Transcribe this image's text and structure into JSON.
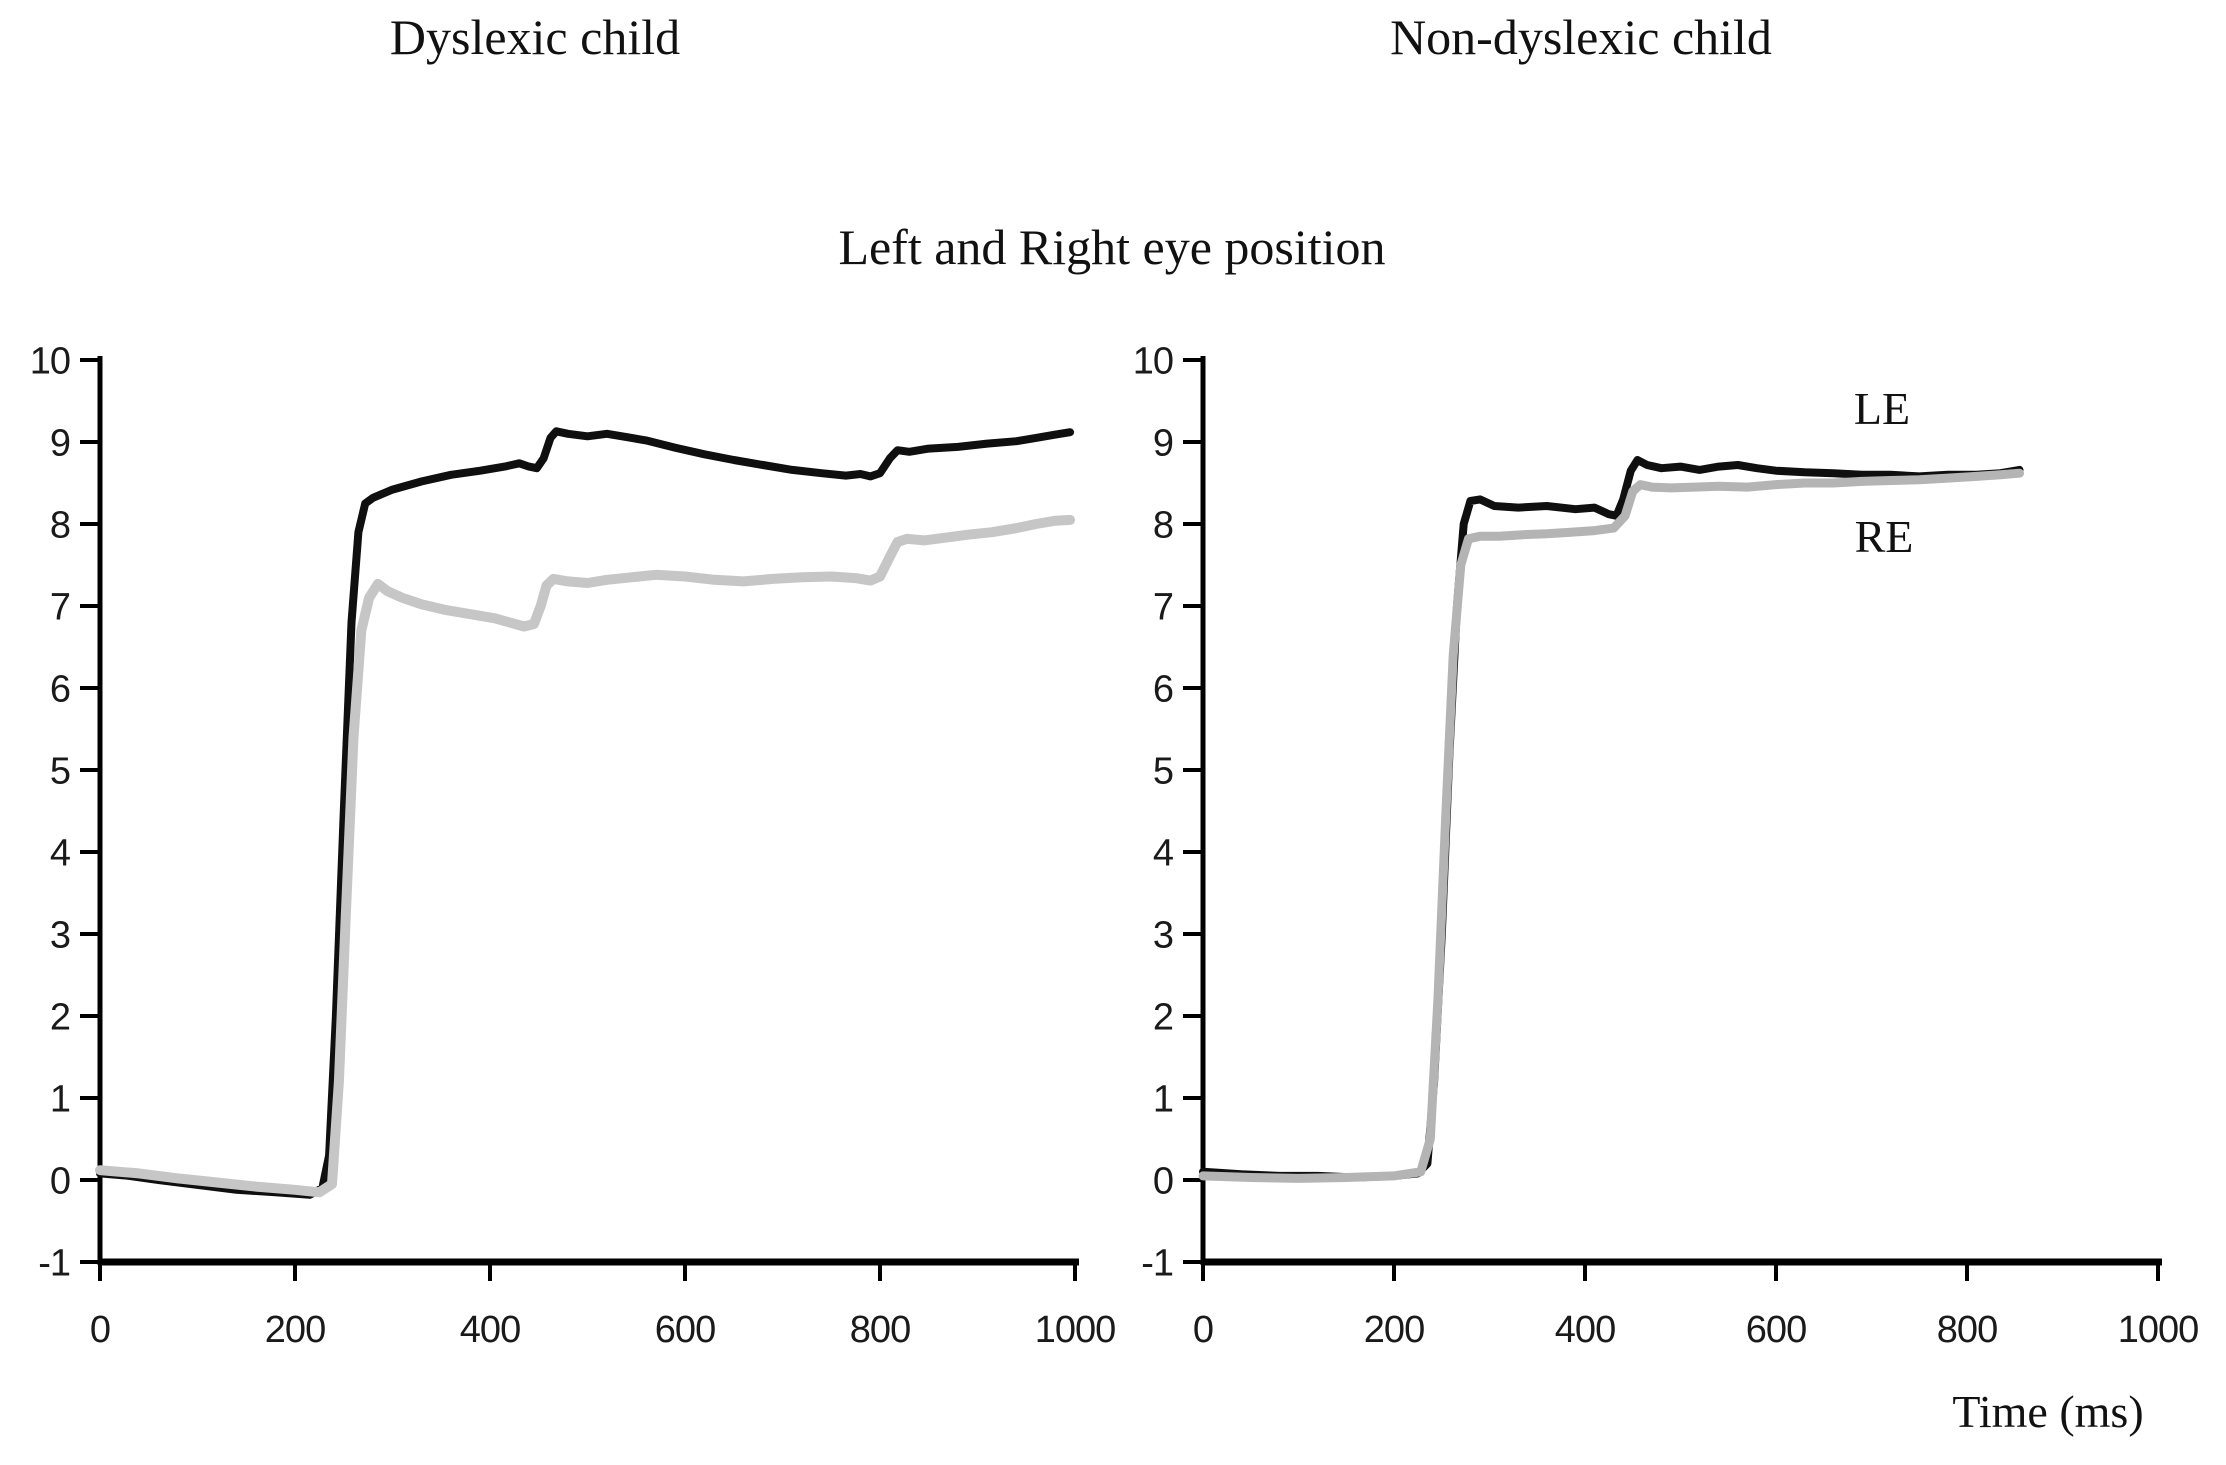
{
  "figure": {
    "subtitle": "Left and Right eye position",
    "background": "#ffffff",
    "axis_color": "#000000",
    "text_color": "#111111"
  },
  "chart_data": [
    {
      "type": "line",
      "title": "Dyslexic child",
      "xlabel": "",
      "ylabel": "",
      "xlim": [
        0,
        1000
      ],
      "ylim": [
        -1,
        10
      ],
      "x_ticks": [
        0,
        200,
        400,
        600,
        800,
        1000
      ],
      "y_ticks": [
        10,
        9,
        8,
        7,
        6,
        5,
        4,
        3,
        2,
        1,
        0,
        -1
      ],
      "grid": false,
      "legend_position": "none",
      "series": [
        {
          "name": "LE",
          "color": "#0f0f0f",
          "width": 8,
          "points": [
            [
              0,
              0.08
            ],
            [
              30,
              0.05
            ],
            [
              60,
              0.0
            ],
            [
              100,
              -0.06
            ],
            [
              140,
              -0.12
            ],
            [
              180,
              -0.15
            ],
            [
              215,
              -0.18
            ],
            [
              228,
              -0.1
            ],
            [
              235,
              0.3
            ],
            [
              242,
              2.0
            ],
            [
              250,
              4.5
            ],
            [
              258,
              6.8
            ],
            [
              265,
              7.9
            ],
            [
              272,
              8.25
            ],
            [
              280,
              8.32
            ],
            [
              300,
              8.42
            ],
            [
              330,
              8.52
            ],
            [
              360,
              8.6
            ],
            [
              390,
              8.65
            ],
            [
              415,
              8.7
            ],
            [
              430,
              8.74
            ],
            [
              440,
              8.7
            ],
            [
              448,
              8.68
            ],
            [
              455,
              8.8
            ],
            [
              462,
              9.05
            ],
            [
              468,
              9.13
            ],
            [
              480,
              9.1
            ],
            [
              500,
              9.07
            ],
            [
              520,
              9.1
            ],
            [
              540,
              9.06
            ],
            [
              560,
              9.02
            ],
            [
              590,
              8.93
            ],
            [
              620,
              8.85
            ],
            [
              650,
              8.78
            ],
            [
              680,
              8.72
            ],
            [
              710,
              8.66
            ],
            [
              740,
              8.62
            ],
            [
              765,
              8.59
            ],
            [
              780,
              8.61
            ],
            [
              790,
              8.58
            ],
            [
              800,
              8.62
            ],
            [
              810,
              8.8
            ],
            [
              818,
              8.9
            ],
            [
              830,
              8.88
            ],
            [
              850,
              8.92
            ],
            [
              880,
              8.94
            ],
            [
              910,
              8.98
            ],
            [
              940,
              9.01
            ],
            [
              960,
              9.05
            ],
            [
              980,
              9.09
            ],
            [
              995,
              9.12
            ]
          ]
        },
        {
          "name": "RE",
          "color": "#c6c6c6",
          "width": 10,
          "points": [
            [
              0,
              0.12
            ],
            [
              40,
              0.08
            ],
            [
              80,
              0.02
            ],
            [
              120,
              -0.03
            ],
            [
              160,
              -0.08
            ],
            [
              200,
              -0.12
            ],
            [
              225,
              -0.15
            ],
            [
              238,
              -0.05
            ],
            [
              245,
              1.2
            ],
            [
              252,
              3.2
            ],
            [
              260,
              5.4
            ],
            [
              268,
              6.7
            ],
            [
              276,
              7.1
            ],
            [
              285,
              7.27
            ],
            [
              295,
              7.18
            ],
            [
              310,
              7.1
            ],
            [
              330,
              7.02
            ],
            [
              355,
              6.95
            ],
            [
              380,
              6.9
            ],
            [
              405,
              6.85
            ],
            [
              420,
              6.8
            ],
            [
              435,
              6.75
            ],
            [
              445,
              6.78
            ],
            [
              452,
              7.0
            ],
            [
              458,
              7.25
            ],
            [
              465,
              7.33
            ],
            [
              480,
              7.3
            ],
            [
              500,
              7.28
            ],
            [
              520,
              7.32
            ],
            [
              545,
              7.35
            ],
            [
              570,
              7.38
            ],
            [
              600,
              7.36
            ],
            [
              630,
              7.32
            ],
            [
              660,
              7.3
            ],
            [
              690,
              7.33
            ],
            [
              720,
              7.35
            ],
            [
              750,
              7.36
            ],
            [
              775,
              7.34
            ],
            [
              790,
              7.31
            ],
            [
              800,
              7.36
            ],
            [
              810,
              7.6
            ],
            [
              818,
              7.78
            ],
            [
              828,
              7.82
            ],
            [
              845,
              7.8
            ],
            [
              865,
              7.83
            ],
            [
              890,
              7.87
            ],
            [
              915,
              7.9
            ],
            [
              940,
              7.95
            ],
            [
              960,
              8.0
            ],
            [
              980,
              8.04
            ],
            [
              995,
              8.05
            ]
          ]
        }
      ]
    },
    {
      "type": "line",
      "title": "Non-dyslexic child",
      "xlabel": "Time (ms)",
      "ylabel": "",
      "xlim": [
        0,
        1000
      ],
      "ylim": [
        -1,
        10
      ],
      "x_ticks": [
        0,
        200,
        400,
        600,
        800,
        1000
      ],
      "y_ticks": [
        10,
        9,
        8,
        7,
        6,
        5,
        4,
        3,
        2,
        1,
        0,
        -1
      ],
      "grid": false,
      "legend_position": "inline-annotations",
      "series": [
        {
          "name": "LE",
          "color": "#0f0f0f",
          "width": 8,
          "points": [
            [
              0,
              0.1
            ],
            [
              40,
              0.07
            ],
            [
              80,
              0.05
            ],
            [
              120,
              0.05
            ],
            [
              160,
              0.03
            ],
            [
              200,
              0.05
            ],
            [
              225,
              0.08
            ],
            [
              235,
              0.2
            ],
            [
              242,
              1.2
            ],
            [
              250,
              3.0
            ],
            [
              258,
              5.2
            ],
            [
              266,
              7.0
            ],
            [
              273,
              8.0
            ],
            [
              280,
              8.28
            ],
            [
              290,
              8.3
            ],
            [
              305,
              8.22
            ],
            [
              330,
              8.2
            ],
            [
              360,
              8.22
            ],
            [
              390,
              8.18
            ],
            [
              410,
              8.2
            ],
            [
              425,
              8.12
            ],
            [
              433,
              8.1
            ],
            [
              440,
              8.3
            ],
            [
              448,
              8.65
            ],
            [
              455,
              8.78
            ],
            [
              465,
              8.72
            ],
            [
              480,
              8.68
            ],
            [
              500,
              8.7
            ],
            [
              520,
              8.66
            ],
            [
              540,
              8.7
            ],
            [
              560,
              8.72
            ],
            [
              580,
              8.68
            ],
            [
              600,
              8.65
            ],
            [
              630,
              8.63
            ],
            [
              660,
              8.62
            ],
            [
              690,
              8.6
            ],
            [
              720,
              8.6
            ],
            [
              750,
              8.58
            ],
            [
              780,
              8.6
            ],
            [
              810,
              8.6
            ],
            [
              835,
              8.62
            ],
            [
              855,
              8.66
            ]
          ]
        },
        {
          "name": "RE",
          "color": "#b4b4b4",
          "width": 9,
          "points": [
            [
              0,
              0.05
            ],
            [
              50,
              0.03
            ],
            [
              100,
              0.02
            ],
            [
              150,
              0.03
            ],
            [
              200,
              0.05
            ],
            [
              228,
              0.1
            ],
            [
              238,
              0.5
            ],
            [
              246,
              2.2
            ],
            [
              254,
              4.4
            ],
            [
              262,
              6.4
            ],
            [
              270,
              7.5
            ],
            [
              278,
              7.82
            ],
            [
              290,
              7.85
            ],
            [
              310,
              7.85
            ],
            [
              335,
              7.87
            ],
            [
              360,
              7.88
            ],
            [
              385,
              7.9
            ],
            [
              410,
              7.92
            ],
            [
              430,
              7.95
            ],
            [
              442,
              8.1
            ],
            [
              450,
              8.4
            ],
            [
              458,
              8.48
            ],
            [
              470,
              8.45
            ],
            [
              490,
              8.44
            ],
            [
              515,
              8.45
            ],
            [
              540,
              8.46
            ],
            [
              570,
              8.45
            ],
            [
              600,
              8.48
            ],
            [
              630,
              8.5
            ],
            [
              660,
              8.5
            ],
            [
              690,
              8.52
            ],
            [
              720,
              8.53
            ],
            [
              750,
              8.54
            ],
            [
              780,
              8.56
            ],
            [
              810,
              8.58
            ],
            [
              835,
              8.6
            ],
            [
              855,
              8.62
            ]
          ]
        }
      ]
    }
  ]
}
